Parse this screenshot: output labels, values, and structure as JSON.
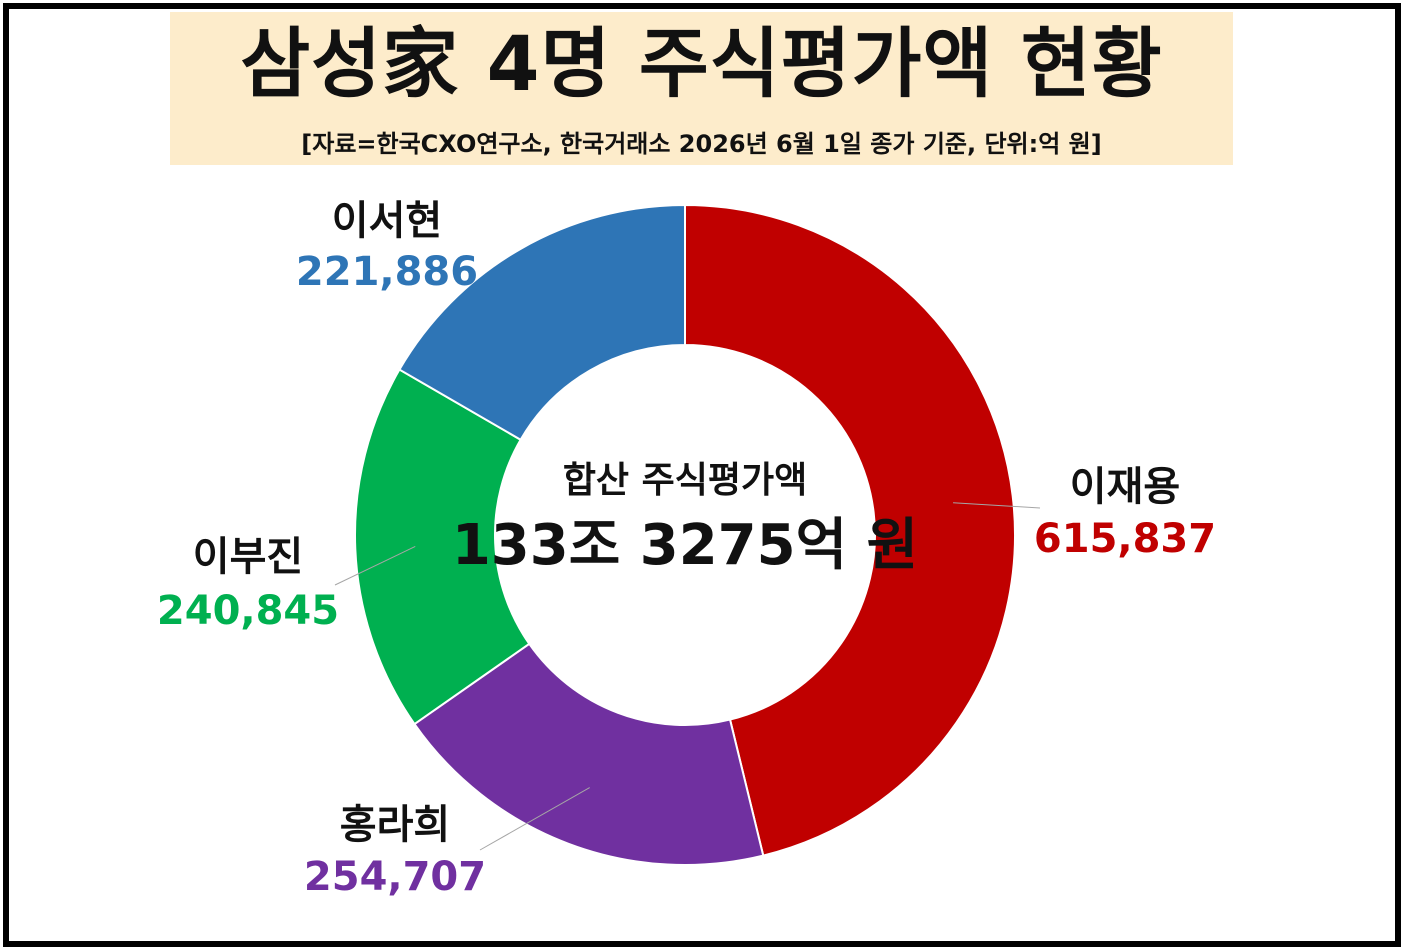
{
  "header": {
    "title": "삼성家 4명 주식평가액 현황",
    "subtitle": "[자료=한국CXO연구소, 한국거래소 2026년 6월 1일 종가 기준, 단위:억 원]"
  },
  "center": {
    "label": "합산 주식평가액",
    "total": "133조 3275억 원"
  },
  "chart_data": {
    "type": "donut",
    "unit": "억 원",
    "series": [
      {
        "name": "이재용",
        "value": 615837,
        "label": "615,837",
        "color": "#c00000"
      },
      {
        "name": "홍라희",
        "value": 254707,
        "label": "254,707",
        "color": "#7030a0"
      },
      {
        "name": "이부진",
        "value": 240845,
        "label": "240,845",
        "color": "#00b050"
      },
      {
        "name": "이서현",
        "value": 221886,
        "label": "221,886",
        "color": "#2e75b6"
      }
    ]
  }
}
